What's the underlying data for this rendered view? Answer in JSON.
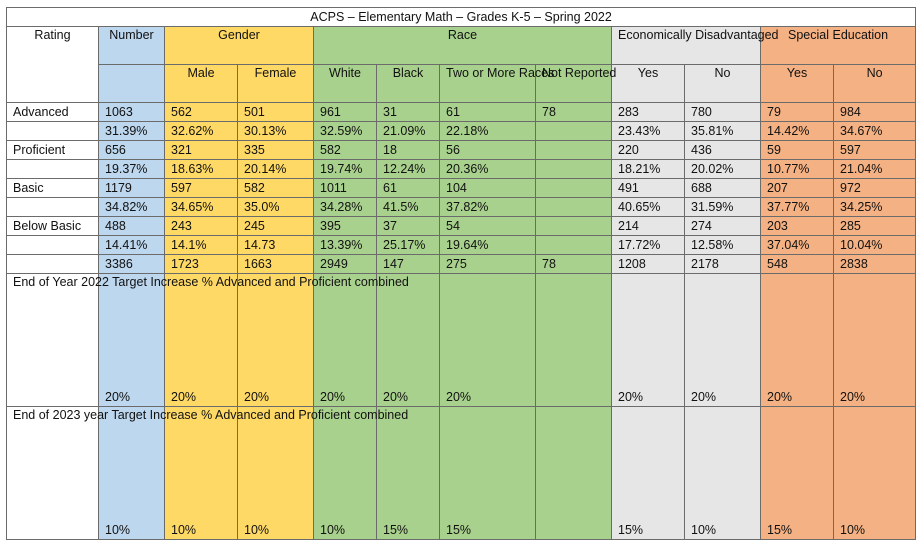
{
  "title": "ACPS – Elementary Math – Grades K-5 – Spring 2022",
  "headers": {
    "rating": "Rating",
    "number": "Number",
    "gender": "Gender",
    "race": "Race",
    "econ": "Economically Disadvantaged",
    "sped": "Special Education",
    "male": "Male",
    "female": "Female",
    "white": "White",
    "black": "Black",
    "two_or_more": "Two or More Races",
    "not_reported": "Not Reported",
    "yes": "Yes",
    "no": "No"
  },
  "rows": [
    {
      "rating": "Advanced",
      "number": "1063",
      "male": "562",
      "female": "501",
      "white": "961",
      "black": "31",
      "two": "61",
      "nr": "78",
      "econ_yes": "283",
      "econ_no": "780",
      "sped_yes": "79",
      "sped_no": "984"
    },
    {
      "rating": "",
      "number": "31.39%",
      "male": "32.62%",
      "female": "30.13%",
      "white": "32.59%",
      "black": "21.09%",
      "two": "22.18%",
      "nr": "",
      "econ_yes": "23.43%",
      "econ_no": "35.81%",
      "sped_yes": "14.42%",
      "sped_no": "34.67%"
    },
    {
      "rating": "Proficient",
      "number": "656",
      "male": "321",
      "female": "335",
      "white": "582",
      "black": "18",
      "two": "56",
      "nr": "",
      "econ_yes": "220",
      "econ_no": "436",
      "sped_yes": "59",
      "sped_no": "597"
    },
    {
      "rating": "",
      "number": "19.37%",
      "male": "18.63%",
      "female": "20.14%",
      "white": "19.74%",
      "black": "12.24%",
      "two": "20.36%",
      "nr": "",
      "econ_yes": "18.21%",
      "econ_no": "20.02%",
      "sped_yes": "10.77%",
      "sped_no": "21.04%"
    },
    {
      "rating": "Basic",
      "number": "1179",
      "male": "597",
      "female": "582",
      "white": "1011",
      "black": "61",
      "two": "104",
      "nr": "",
      "econ_yes": "491",
      "econ_no": "688",
      "sped_yes": "207",
      "sped_no": "972"
    },
    {
      "rating": "",
      "number": "34.82%",
      "male": "34.65%",
      "female": "35.0%",
      "white": "34.28%",
      "black": "41.5%",
      "two": "37.82%",
      "nr": "",
      "econ_yes": "40.65%",
      "econ_no": "31.59%",
      "sped_yes": "37.77%",
      "sped_no": "34.25%"
    },
    {
      "rating": "Below Basic",
      "number": "488",
      "male": "243",
      "female": "245",
      "white": "395",
      "black": "37",
      "two": "54",
      "nr": "",
      "econ_yes": "214",
      "econ_no": "274",
      "sped_yes": "203",
      "sped_no": "285"
    },
    {
      "rating": "",
      "number": "14.41%",
      "male": "14.1%",
      "female": "14.73",
      "white": "13.39%",
      "black": "25.17%",
      "two": "19.64%",
      "nr": "",
      "econ_yes": "17.72%",
      "econ_no": "12.58%",
      "sped_yes": "37.04%",
      "sped_no": "10.04%"
    },
    {
      "rating": "",
      "number": "3386",
      "male": "1723",
      "female": "1663",
      "white": "2949",
      "black": "147",
      "two": "275",
      "nr": "78",
      "econ_yes": "1208",
      "econ_no": "2178",
      "sped_yes": "548",
      "sped_no": "2838"
    }
  ],
  "targets": [
    {
      "rating": "End of Year 2022 Target Increase % Advanced and Proficient combined",
      "number": "20%",
      "male": "20%",
      "female": "20%",
      "white": "20%",
      "black": "20%",
      "two": "20%",
      "nr": "",
      "econ_yes": "20%",
      "econ_no": "20%",
      "sped_yes": "20%",
      "sped_no": "20%"
    },
    {
      "rating": "End of 2023 year Target Increase % Advanced and Proficient combined",
      "number": "10%",
      "male": "10%",
      "female": "10%",
      "white": "10%",
      "black": "15%",
      "two": "15%",
      "nr": "",
      "econ_yes": "15%",
      "econ_no": "10%",
      "sped_yes": "15%",
      "sped_no": "10%"
    }
  ]
}
